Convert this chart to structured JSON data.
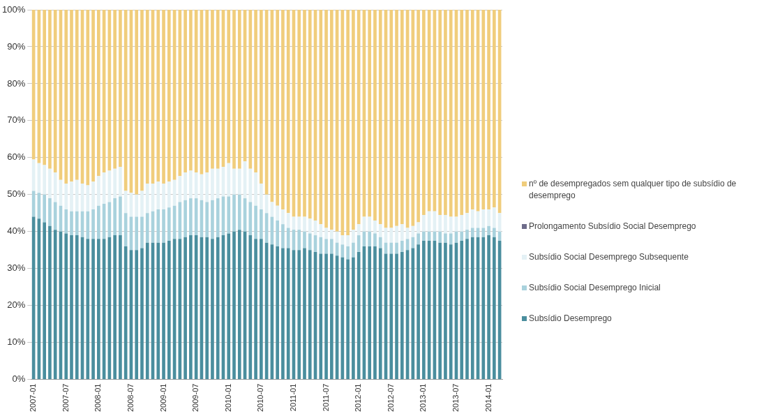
{
  "chart_data": {
    "type": "bar",
    "stacked": true,
    "grid": "y",
    "legend": "right",
    "categories": [
      "2007-01",
      null,
      null,
      null,
      null,
      null,
      "2007-07",
      null,
      null,
      null,
      null,
      null,
      "2008-01",
      null,
      null,
      null,
      null,
      null,
      "2008-07",
      null,
      null,
      null,
      null,
      null,
      "2009-01",
      null,
      null,
      null,
      null,
      null,
      "2009-07",
      null,
      null,
      null,
      null,
      null,
      "2010-01",
      null,
      null,
      null,
      null,
      null,
      "2010-07",
      null,
      null,
      null,
      null,
      null,
      "2011-01",
      null,
      null,
      null,
      null,
      null,
      "2011-07",
      null,
      null,
      null,
      null,
      null,
      "2012-01",
      null,
      null,
      null,
      null,
      null,
      "2012-07",
      null,
      null,
      null,
      null,
      null,
      "2013-01",
      null,
      null,
      null,
      null,
      null,
      "2013-07",
      null,
      null,
      null,
      null,
      null,
      "2014-01",
      null,
      null
    ],
    "ylim": [
      0,
      100
    ],
    "yticks": [
      {
        "value": 0,
        "label": "0%"
      },
      {
        "value": 10,
        "label": "10%"
      },
      {
        "value": 20,
        "label": "20%"
      },
      {
        "value": 30,
        "label": "30%"
      },
      {
        "value": 40,
        "label": "40%"
      },
      {
        "value": 50,
        "label": "50%"
      },
      {
        "value": 60,
        "label": "60%"
      },
      {
        "value": 70,
        "label": "70%"
      },
      {
        "value": 80,
        "label": "80%"
      },
      {
        "value": 90,
        "label": "90%"
      },
      {
        "value": 100,
        "label": "100%"
      }
    ],
    "series": [
      {
        "name": "Subsídio Desemprego",
        "color": "#4a8e9e",
        "values": [
          44,
          43.5,
          42.5,
          41.5,
          40.5,
          40,
          39.5,
          39,
          39,
          38.5,
          38,
          38,
          38,
          38,
          38.5,
          39,
          39,
          36,
          35,
          35,
          35.5,
          37,
          37,
          37,
          37,
          37.5,
          38,
          38,
          38.5,
          39,
          39,
          38.5,
          38.5,
          38,
          38.5,
          39,
          39.5,
          40,
          40.5,
          40,
          39,
          38,
          38,
          37,
          36.5,
          36,
          35.5,
          35.5,
          35,
          35,
          35.5,
          35,
          34.5,
          34,
          34,
          34,
          33.5,
          33,
          32.5,
          33,
          34.5,
          36,
          36,
          36,
          35.5,
          34,
          34,
          34,
          34.5,
          35,
          35.5,
          36.5,
          37.5,
          37.5,
          37.5,
          37,
          37,
          36.5,
          37,
          37.5,
          38,
          38.5,
          38.5,
          38.5,
          39,
          38.5,
          37.5
        ]
      },
      {
        "name": "Subsídio Social Desemprego Inicial",
        "color": "#a9d2dd",
        "values": [
          7,
          7,
          7.5,
          7.5,
          7.5,
          7,
          6.5,
          6.5,
          6.5,
          7,
          7.5,
          8,
          9,
          9.5,
          9.5,
          10,
          10.5,
          9,
          9,
          9,
          8.5,
          8,
          8.5,
          9,
          9,
          9,
          9,
          10,
          10,
          10,
          10,
          10,
          9.5,
          10.5,
          10.5,
          10.5,
          10,
          10,
          9.5,
          9,
          9,
          9,
          8,
          8,
          7.5,
          7,
          6.5,
          5.5,
          5.5,
          5.5,
          4.5,
          4.5,
          4.5,
          4.5,
          4,
          4,
          3.5,
          3.5,
          3.5,
          4,
          4.5,
          4,
          4,
          3.5,
          3,
          3,
          3,
          3,
          3,
          3,
          3,
          3,
          2.5,
          2.5,
          2.5,
          3,
          2.5,
          3,
          3,
          2.5,
          2.5,
          2.5,
          2.5,
          2.5,
          2.5,
          2.5,
          2.5
        ]
      },
      {
        "name": "Subsídio Social Desemprego Subsequente",
        "color": "#e4f1f5",
        "values": [
          8.5,
          8,
          8,
          8,
          8,
          7,
          7,
          8,
          8.5,
          7.5,
          7,
          7.5,
          8,
          8.5,
          8.5,
          8,
          8,
          6,
          6.5,
          6,
          7,
          8,
          7.5,
          7.5,
          7,
          7,
          7,
          7,
          7.5,
          7.5,
          7,
          7,
          8,
          8.5,
          8,
          8,
          9,
          7,
          7,
          10,
          9,
          9,
          7,
          5,
          4,
          4,
          4,
          4,
          3.5,
          3.5,
          4,
          4,
          4,
          3.5,
          3,
          2.5,
          3,
          2.5,
          3,
          3.5,
          3,
          4,
          4,
          3.5,
          3.5,
          4,
          4,
          4.5,
          4.5,
          3,
          3,
          3,
          4.5,
          5.5,
          5.5,
          4.5,
          5,
          4.5,
          4,
          4.5,
          4.5,
          5,
          4.5,
          5,
          4.5,
          5.5,
          5
        ]
      },
      {
        "name": "Prolongamento Subsídio Social Desemprego",
        "color": "#6e6c8a",
        "values": [
          0,
          0,
          0,
          0,
          0,
          0,
          0,
          0,
          0,
          0,
          0,
          0,
          0,
          0,
          0,
          0,
          0,
          0,
          0,
          0,
          0,
          0,
          0,
          0,
          0,
          0,
          0,
          0,
          0,
          0,
          0,
          0,
          0,
          0,
          0,
          0,
          0,
          0,
          0,
          0,
          0,
          0,
          0,
          0,
          0,
          0,
          0,
          0,
          0,
          0,
          0,
          0,
          0,
          0,
          0,
          0,
          0,
          0,
          0,
          0,
          0,
          0,
          0,
          0,
          0,
          0,
          0,
          0,
          0,
          0,
          0,
          0,
          0,
          0,
          0,
          0,
          0,
          0,
          0,
          0,
          0,
          0,
          0,
          0,
          0,
          0,
          0
        ]
      },
      {
        "name": "nº de desempregados sem qualquer tipo de subsídio de desemprego",
        "color": "#f0cd7c",
        "values": [
          40.5,
          41.5,
          42,
          43,
          44,
          46,
          47,
          46.5,
          46,
          47,
          47.5,
          46.5,
          45,
          44,
          43.5,
          43,
          42.5,
          49,
          49.5,
          50,
          49,
          47,
          47,
          46.5,
          47,
          46.5,
          46,
          45,
          44,
          43.5,
          44,
          44.5,
          44,
          43,
          43,
          42.5,
          41.5,
          43,
          43,
          41,
          43,
          44,
          47,
          50,
          52,
          53,
          54,
          55,
          56,
          56,
          56,
          56.5,
          57,
          58,
          59,
          59.5,
          60,
          61,
          61,
          59.5,
          58,
          56,
          56,
          57,
          58,
          59,
          59,
          58.5,
          58,
          59,
          58.5,
          57.5,
          55.5,
          54.5,
          54.5,
          55.5,
          55.5,
          56,
          56,
          55.5,
          55,
          54,
          54.5,
          54,
          54,
          53.5,
          55
        ]
      }
    ]
  }
}
